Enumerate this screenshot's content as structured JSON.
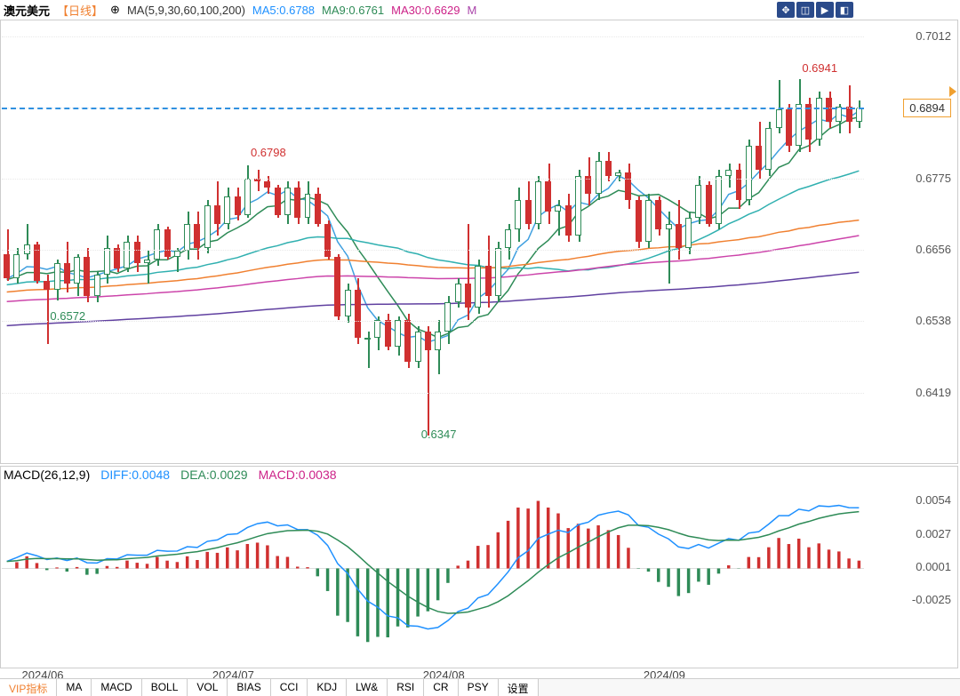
{
  "header": {
    "pair": "澳元美元",
    "timeframe": "【日线】",
    "ma_label": "MA(5,9,30,60,100,200)",
    "ma5": "MA5:0.6788",
    "ma9": "MA9:0.6761",
    "ma30": "MA30:0.6629",
    "m": "M"
  },
  "main_chart": {
    "ylim": [
      0.63,
      0.704
    ],
    "yticks": [
      {
        "v": 0.7012,
        "label": "0.7012"
      },
      {
        "v": 0.6894,
        "label": "0.6894"
      },
      {
        "v": 0.6775,
        "label": "0.6775"
      },
      {
        "v": 0.6656,
        "label": "0.6656"
      },
      {
        "v": 0.6538,
        "label": "0.6538"
      },
      {
        "v": 0.6419,
        "label": "0.6419"
      }
    ],
    "current_price": 0.6894,
    "current_price_label": "0.6894",
    "price_box_border": "#f0a030",
    "annotations": [
      {
        "text": "0.6941",
        "v": 0.697,
        "xi": 80,
        "color": "#d03030"
      },
      {
        "text": "0.6798",
        "v": 0.683,
        "xi": 25,
        "color": "#d03030"
      },
      {
        "text": "0.6572",
        "v": 0.6558,
        "xi": 5,
        "color": "#2e8b57"
      },
      {
        "text": "0.6347",
        "v": 0.636,
        "xi": 42,
        "color": "#2e8b57"
      }
    ],
    "colors": {
      "up_border": "#2e8b57",
      "up_fill": "#ffffff",
      "dn_border": "#d03030",
      "dn_fill": "#d03030",
      "ma5_line": "#40a0e0",
      "ma9_line": "#2e8b57",
      "ma30_line": "#30b0b0",
      "ma60_line": "#f08030",
      "ma100_line": "#cc44aa",
      "ma200_line": "#6040a0",
      "grid": "#eeeeee",
      "dash_line": "#3090e0"
    },
    "n_bars": 87,
    "candles": [
      {
        "o": 0.665,
        "h": 0.669,
        "l": 0.6605,
        "c": 0.661
      },
      {
        "o": 0.661,
        "h": 0.666,
        "l": 0.66,
        "c": 0.665
      },
      {
        "o": 0.665,
        "h": 0.67,
        "l": 0.664,
        "c": 0.6665
      },
      {
        "o": 0.6665,
        "h": 0.667,
        "l": 0.66,
        "c": 0.6605
      },
      {
        "o": 0.6605,
        "h": 0.6615,
        "l": 0.65,
        "c": 0.659
      },
      {
        "o": 0.659,
        "h": 0.664,
        "l": 0.6572,
        "c": 0.6635
      },
      {
        "o": 0.6635,
        "h": 0.667,
        "l": 0.6585,
        "c": 0.66
      },
      {
        "o": 0.66,
        "h": 0.665,
        "l": 0.658,
        "c": 0.6645
      },
      {
        "o": 0.6645,
        "h": 0.666,
        "l": 0.657,
        "c": 0.658
      },
      {
        "o": 0.658,
        "h": 0.662,
        "l": 0.657,
        "c": 0.6615
      },
      {
        "o": 0.6615,
        "h": 0.668,
        "l": 0.66,
        "c": 0.666
      },
      {
        "o": 0.666,
        "h": 0.6665,
        "l": 0.662,
        "c": 0.6625
      },
      {
        "o": 0.6625,
        "h": 0.668,
        "l": 0.662,
        "c": 0.667
      },
      {
        "o": 0.667,
        "h": 0.668,
        "l": 0.662,
        "c": 0.6635
      },
      {
        "o": 0.6635,
        "h": 0.6655,
        "l": 0.66,
        "c": 0.664
      },
      {
        "o": 0.664,
        "h": 0.67,
        "l": 0.663,
        "c": 0.669
      },
      {
        "o": 0.669,
        "h": 0.6695,
        "l": 0.664,
        "c": 0.6645
      },
      {
        "o": 0.6645,
        "h": 0.666,
        "l": 0.662,
        "c": 0.6655
      },
      {
        "o": 0.6655,
        "h": 0.672,
        "l": 0.664,
        "c": 0.67
      },
      {
        "o": 0.67,
        "h": 0.672,
        "l": 0.664,
        "c": 0.666
      },
      {
        "o": 0.666,
        "h": 0.674,
        "l": 0.665,
        "c": 0.673
      },
      {
        "o": 0.673,
        "h": 0.677,
        "l": 0.668,
        "c": 0.67
      },
      {
        "o": 0.67,
        "h": 0.676,
        "l": 0.669,
        "c": 0.6745
      },
      {
        "o": 0.6745,
        "h": 0.676,
        "l": 0.6705,
        "c": 0.6715
      },
      {
        "o": 0.6715,
        "h": 0.6798,
        "l": 0.671,
        "c": 0.6775
      },
      {
        "o": 0.6775,
        "h": 0.679,
        "l": 0.6755,
        "c": 0.677
      },
      {
        "o": 0.677,
        "h": 0.678,
        "l": 0.675,
        "c": 0.676
      },
      {
        "o": 0.676,
        "h": 0.6765,
        "l": 0.671,
        "c": 0.6715
      },
      {
        "o": 0.6715,
        "h": 0.677,
        "l": 0.67,
        "c": 0.676
      },
      {
        "o": 0.676,
        "h": 0.677,
        "l": 0.67,
        "c": 0.671
      },
      {
        "o": 0.671,
        "h": 0.677,
        "l": 0.67,
        "c": 0.675
      },
      {
        "o": 0.675,
        "h": 0.676,
        "l": 0.6695,
        "c": 0.67
      },
      {
        "o": 0.67,
        "h": 0.6705,
        "l": 0.664,
        "c": 0.6645
      },
      {
        "o": 0.6645,
        "h": 0.665,
        "l": 0.654,
        "c": 0.6545
      },
      {
        "o": 0.6545,
        "h": 0.66,
        "l": 0.6535,
        "c": 0.659
      },
      {
        "o": 0.659,
        "h": 0.661,
        "l": 0.65,
        "c": 0.651
      },
      {
        "o": 0.651,
        "h": 0.652,
        "l": 0.646,
        "c": 0.651
      },
      {
        "o": 0.651,
        "h": 0.6545,
        "l": 0.649,
        "c": 0.654
      },
      {
        "o": 0.654,
        "h": 0.655,
        "l": 0.649,
        "c": 0.6495
      },
      {
        "o": 0.6495,
        "h": 0.6545,
        "l": 0.648,
        "c": 0.654
      },
      {
        "o": 0.654,
        "h": 0.655,
        "l": 0.646,
        "c": 0.647
      },
      {
        "o": 0.647,
        "h": 0.653,
        "l": 0.646,
        "c": 0.652
      },
      {
        "o": 0.652,
        "h": 0.653,
        "l": 0.6347,
        "c": 0.649
      },
      {
        "o": 0.649,
        "h": 0.654,
        "l": 0.645,
        "c": 0.652
      },
      {
        "o": 0.652,
        "h": 0.658,
        "l": 0.65,
        "c": 0.657
      },
      {
        "o": 0.657,
        "h": 0.661,
        "l": 0.656,
        "c": 0.66
      },
      {
        "o": 0.66,
        "h": 0.67,
        "l": 0.654,
        "c": 0.656
      },
      {
        "o": 0.656,
        "h": 0.664,
        "l": 0.655,
        "c": 0.663
      },
      {
        "o": 0.663,
        "h": 0.668,
        "l": 0.656,
        "c": 0.658
      },
      {
        "o": 0.658,
        "h": 0.667,
        "l": 0.657,
        "c": 0.666
      },
      {
        "o": 0.666,
        "h": 0.67,
        "l": 0.664,
        "c": 0.669
      },
      {
        "o": 0.669,
        "h": 0.676,
        "l": 0.667,
        "c": 0.674
      },
      {
        "o": 0.674,
        "h": 0.677,
        "l": 0.669,
        "c": 0.67
      },
      {
        "o": 0.67,
        "h": 0.678,
        "l": 0.669,
        "c": 0.677
      },
      {
        "o": 0.677,
        "h": 0.68,
        "l": 0.67,
        "c": 0.672
      },
      {
        "o": 0.672,
        "h": 0.674,
        "l": 0.668,
        "c": 0.673
      },
      {
        "o": 0.673,
        "h": 0.675,
        "l": 0.667,
        "c": 0.668
      },
      {
        "o": 0.668,
        "h": 0.679,
        "l": 0.667,
        "c": 0.678
      },
      {
        "o": 0.678,
        "h": 0.681,
        "l": 0.673,
        "c": 0.675
      },
      {
        "o": 0.675,
        "h": 0.682,
        "l": 0.674,
        "c": 0.6805
      },
      {
        "o": 0.6805,
        "h": 0.682,
        "l": 0.677,
        "c": 0.678
      },
      {
        "o": 0.678,
        "h": 0.679,
        "l": 0.677,
        "c": 0.6785
      },
      {
        "o": 0.6785,
        "h": 0.68,
        "l": 0.6725,
        "c": 0.674
      },
      {
        "o": 0.674,
        "h": 0.6745,
        "l": 0.666,
        "c": 0.667
      },
      {
        "o": 0.667,
        "h": 0.675,
        "l": 0.666,
        "c": 0.674
      },
      {
        "o": 0.674,
        "h": 0.6745,
        "l": 0.668,
        "c": 0.669
      },
      {
        "o": 0.669,
        "h": 0.672,
        "l": 0.66,
        "c": 0.67
      },
      {
        "o": 0.67,
        "h": 0.674,
        "l": 0.664,
        "c": 0.666
      },
      {
        "o": 0.666,
        "h": 0.672,
        "l": 0.665,
        "c": 0.671
      },
      {
        "o": 0.671,
        "h": 0.678,
        "l": 0.67,
        "c": 0.6765
      },
      {
        "o": 0.6765,
        "h": 0.677,
        "l": 0.6695,
        "c": 0.67
      },
      {
        "o": 0.67,
        "h": 0.679,
        "l": 0.669,
        "c": 0.678
      },
      {
        "o": 0.678,
        "h": 0.68,
        "l": 0.676,
        "c": 0.679
      },
      {
        "o": 0.679,
        "h": 0.68,
        "l": 0.6725,
        "c": 0.674
      },
      {
        "o": 0.674,
        "h": 0.684,
        "l": 0.673,
        "c": 0.683
      },
      {
        "o": 0.683,
        "h": 0.687,
        "l": 0.6775,
        "c": 0.679
      },
      {
        "o": 0.679,
        "h": 0.687,
        "l": 0.678,
        "c": 0.686
      },
      {
        "o": 0.686,
        "h": 0.694,
        "l": 0.685,
        "c": 0.689
      },
      {
        "o": 0.689,
        "h": 0.69,
        "l": 0.682,
        "c": 0.683
      },
      {
        "o": 0.683,
        "h": 0.6941,
        "l": 0.682,
        "c": 0.69
      },
      {
        "o": 0.69,
        "h": 0.691,
        "l": 0.682,
        "c": 0.684
      },
      {
        "o": 0.684,
        "h": 0.692,
        "l": 0.683,
        "c": 0.691
      },
      {
        "o": 0.691,
        "h": 0.692,
        "l": 0.686,
        "c": 0.687
      },
      {
        "o": 0.687,
        "h": 0.69,
        "l": 0.685,
        "c": 0.6895
      },
      {
        "o": 0.6895,
        "h": 0.693,
        "l": 0.685,
        "c": 0.687
      },
      {
        "o": 0.687,
        "h": 0.6905,
        "l": 0.686,
        "c": 0.6894
      }
    ]
  },
  "macd": {
    "label": "MACD(26,12,9)",
    "diff_label": "DIFF:0.0048",
    "dea_label": "DEA:0.0029",
    "macd_label": "MACD:0.0038",
    "ylim": [
      -0.007,
      0.0065
    ],
    "yticks": [
      {
        "v": 0.0054,
        "label": "0.0054"
      },
      {
        "v": 0.0027,
        "label": "0.0027"
      },
      {
        "v": 0.0001,
        "label": "0.0001"
      },
      {
        "v": -0.0025,
        "label": "-0.0025"
      }
    ],
    "colors": {
      "diff": "#1e90ff",
      "dea": "#2e8b57",
      "hist_up": "#d03030",
      "hist_dn": "#2e8b57"
    }
  },
  "xaxis": {
    "labels": [
      {
        "xi": 2,
        "label": "2024/06"
      },
      {
        "xi": 21,
        "label": "2024/07"
      },
      {
        "xi": 42,
        "label": "2024/08"
      },
      {
        "xi": 64,
        "label": "2024/09"
      }
    ]
  },
  "tabs": [
    {
      "label": "VIP指标",
      "cls": "vip"
    },
    {
      "label": "MA"
    },
    {
      "label": "MACD"
    },
    {
      "label": "BOLL"
    },
    {
      "label": "VOL"
    },
    {
      "label": "BIAS"
    },
    {
      "label": "CCI"
    },
    {
      "label": "KDJ"
    },
    {
      "label": "LW&"
    },
    {
      "label": "RSI"
    },
    {
      "label": "CR"
    },
    {
      "label": "PSY"
    },
    {
      "label": "设置"
    }
  ]
}
